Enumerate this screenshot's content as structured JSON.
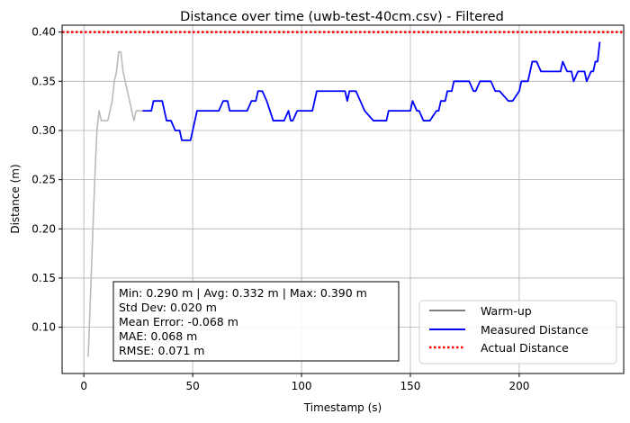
{
  "chart_data": {
    "type": "line",
    "title": "Distance over time (uwb-test-40cm.csv) - Filtered",
    "xlabel": "Timestamp (s)",
    "ylabel": "Distance (m)",
    "xlim": [
      -10,
      248
    ],
    "ylim": [
      0.053,
      0.407
    ],
    "xticks": [
      0,
      50,
      100,
      150,
      200
    ],
    "yticks": [
      0.1,
      0.15,
      0.2,
      0.25,
      0.3,
      0.35,
      0.4
    ],
    "xtick_labels": [
      "0",
      "50",
      "100",
      "150",
      "200"
    ],
    "ytick_labels": [
      "0.10",
      "0.15",
      "0.20",
      "0.25",
      "0.30",
      "0.35",
      "0.40"
    ],
    "grid": true,
    "legend_position": "lower-right",
    "series": [
      {
        "name": "Warm-up",
        "color": "#bbbbbb",
        "legend_color": "#808080",
        "style": "solid",
        "x": [
          2,
          3,
          4,
          5,
          6,
          7,
          8,
          9,
          10,
          11,
          12,
          13,
          14,
          15,
          16,
          17,
          18,
          19,
          20,
          21,
          22,
          23,
          24,
          25,
          26,
          27
        ],
        "y": [
          0.07,
          0.13,
          0.19,
          0.25,
          0.3,
          0.32,
          0.31,
          0.31,
          0.31,
          0.31,
          0.32,
          0.33,
          0.35,
          0.36,
          0.38,
          0.38,
          0.36,
          0.35,
          0.34,
          0.33,
          0.32,
          0.31,
          0.32,
          0.32,
          0.32,
          0.32
        ]
      },
      {
        "name": "Measured Distance",
        "color": "#0000ff",
        "style": "solid",
        "x": [
          27,
          30,
          31,
          32,
          36,
          38,
          39,
          40,
          42,
          44,
          45,
          47,
          49,
          51,
          52,
          54,
          57,
          59,
          62,
          64,
          66,
          67,
          68,
          71,
          75,
          77,
          79,
          80,
          82,
          84,
          87,
          88,
          89,
          92,
          94,
          95,
          96,
          98,
          100,
          101,
          105,
          107,
          109,
          110,
          112,
          118,
          120,
          121,
          122,
          124,
          125,
          127,
          129,
          133,
          135,
          136,
          137,
          139,
          140,
          146,
          147,
          148,
          150,
          151,
          153,
          154,
          156,
          159,
          162,
          163,
          164,
          166,
          167,
          169,
          170,
          171,
          174,
          175,
          177,
          179,
          180,
          182,
          184,
          185,
          187,
          189,
          191,
          195,
          197,
          200,
          201,
          203,
          204,
          205,
          206,
          208,
          210,
          211,
          213,
          214,
          216,
          217,
          219,
          220,
          222,
          224,
          225,
          227,
          228,
          230,
          231,
          233,
          234,
          235,
          236,
          237
        ],
        "y": [
          0.32,
          0.32,
          0.32,
          0.33,
          0.33,
          0.31,
          0.31,
          0.31,
          0.3,
          0.3,
          0.29,
          0.29,
          0.29,
          0.31,
          0.32,
          0.32,
          0.32,
          0.32,
          0.32,
          0.33,
          0.33,
          0.32,
          0.32,
          0.32,
          0.32,
          0.33,
          0.33,
          0.34,
          0.34,
          0.33,
          0.31,
          0.31,
          0.31,
          0.31,
          0.32,
          0.31,
          0.31,
          0.32,
          0.32,
          0.32,
          0.32,
          0.34,
          0.34,
          0.34,
          0.34,
          0.34,
          0.34,
          0.33,
          0.34,
          0.34,
          0.34,
          0.33,
          0.32,
          0.31,
          0.31,
          0.31,
          0.31,
          0.31,
          0.32,
          0.32,
          0.32,
          0.32,
          0.32,
          0.33,
          0.32,
          0.32,
          0.31,
          0.31,
          0.32,
          0.32,
          0.33,
          0.33,
          0.34,
          0.34,
          0.35,
          0.35,
          0.35,
          0.35,
          0.35,
          0.34,
          0.34,
          0.35,
          0.35,
          0.35,
          0.35,
          0.34,
          0.34,
          0.33,
          0.33,
          0.34,
          0.35,
          0.35,
          0.35,
          0.36,
          0.37,
          0.37,
          0.36,
          0.36,
          0.36,
          0.36,
          0.36,
          0.36,
          0.36,
          0.37,
          0.36,
          0.36,
          0.35,
          0.36,
          0.36,
          0.36,
          0.35,
          0.36,
          0.36,
          0.37,
          0.37,
          0.39
        ]
      },
      {
        "name": "Actual Distance",
        "color": "#ff0000",
        "style": "dotted",
        "x": [
          -10,
          248
        ],
        "y": [
          0.4,
          0.4
        ]
      }
    ],
    "stats_lines": [
      "Min: 0.290 m | Avg: 0.332 m | Max: 0.390 m",
      "Std Dev: 0.020 m",
      "Mean Error: -0.068 m",
      "MAE: 0.068 m",
      "RMSE: 0.071 m"
    ]
  }
}
